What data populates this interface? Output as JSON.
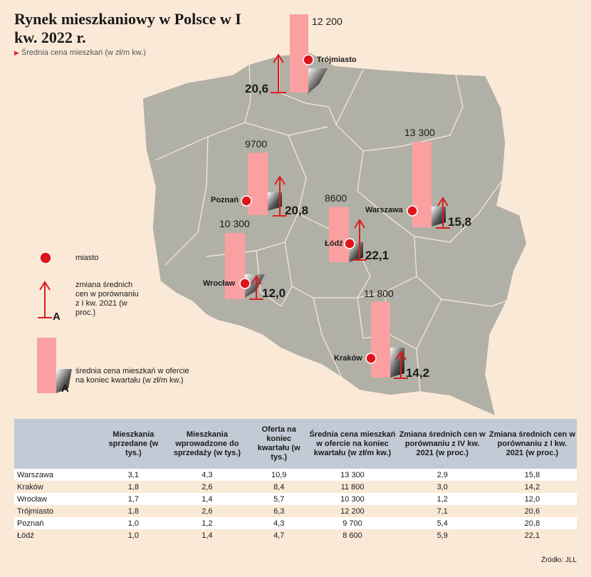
{
  "title": "Rynek mieszkaniowy w Polsce w I kw. 2022 r.",
  "subtitle": "Średnia cena mieszkań (w zł/m kw.)",
  "cities": [
    {
      "name": "Trójmiasto",
      "price": "12 200",
      "change": "20,6",
      "price_value": 12200
    },
    {
      "name": "Poznań",
      "price": "9700",
      "change": "20,8",
      "price_value": 9700
    },
    {
      "name": "Warszawa",
      "price": "13 300",
      "change": "15,8",
      "price_value": 13300
    },
    {
      "name": "Łódź",
      "price": "8600",
      "change": "22,1",
      "price_value": 8600
    },
    {
      "name": "Wrocław",
      "price": "10 300",
      "change": "12,0",
      "price_value": 10300
    },
    {
      "name": "Kraków",
      "price": "11 800",
      "change": "14,2",
      "price_value": 11800
    }
  ],
  "legend": {
    "city": "miasto",
    "change": "zmiana średnich cen w porównaniu z I kw. 2021 (w proc.)",
    "price": "średnia cena mieszkań w ofercie na koniec kwartału (w zł/m kw.)",
    "marker": "A"
  },
  "colors": {
    "bar": "#fba0a0",
    "arrow": "#d81e1e",
    "map": "#b1b0a6",
    "dot": "#e0141c"
  },
  "table": {
    "headers": [
      "",
      "Mieszkania sprzedane (w tys.)",
      "Mieszkania wprowadzone do sprzedaży (w tys.)",
      "Oferta na koniec kwartału (w tys.)",
      "Średnia cena mieszkań w ofercie na koniec kwartału (w zł/m kw.)",
      "Zmiana średnich cen w porównaniu z IV kw. 2021 (w proc.)",
      "Zmiana średnich cen w porównaniu z I kw. 2021 (w proc.)"
    ],
    "rows": [
      [
        "Warszawa",
        "3,1",
        "4,3",
        "10,9",
        "13 300",
        "2,9",
        "15,8"
      ],
      [
        "Kraków",
        "1,8",
        "2,6",
        "8,4",
        "11 800",
        "3,0",
        "14,2"
      ],
      [
        "Wrocław",
        "1,7",
        "1,4",
        "5,7",
        "10 300",
        "1,2",
        "12,0"
      ],
      [
        "Trójmiasto",
        "1,8",
        "2,6",
        "6,3",
        "12 200",
        "7,1",
        "20,6"
      ],
      [
        "Poznań",
        "1,0",
        "1,2",
        "4,3",
        "9 700",
        "5,4",
        "20,8"
      ],
      [
        "Łódź",
        "1,0",
        "1,4",
        "4,7",
        "8 600",
        "5,9",
        "22,1"
      ]
    ]
  },
  "source": "Źródło: JLL"
}
